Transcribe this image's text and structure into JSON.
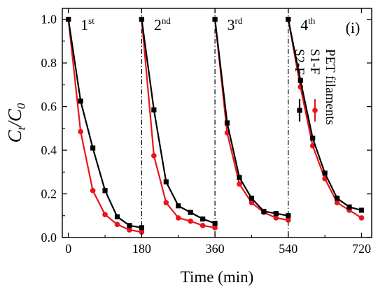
{
  "chart_data": {
    "type": "line",
    "xlabel": "Time (min)",
    "ylabel_main": "C",
    "ylabel_sub1": "t",
    "ylabel_mid": "/C",
    "ylabel_sub2": "0",
    "xlim": [
      -15,
      745
    ],
    "ylim": [
      0.0,
      1.05
    ],
    "xticks": [
      0,
      180,
      360,
      540,
      720
    ],
    "yticks": [
      0.0,
      0.2,
      0.4,
      0.6,
      0.8,
      1.0
    ],
    "ytick_labels": [
      "0.0",
      "0.2",
      "0.4",
      "0.6",
      "0.8",
      "1.0"
    ],
    "panel_label": "(i)",
    "cycles": [
      {
        "base": "1",
        "sup": "st",
        "x": 30
      },
      {
        "base": "2",
        "sup": "nd",
        "x": 210
      },
      {
        "base": "3",
        "sup": "rd",
        "x": 390
      },
      {
        "base": "4",
        "sup": "th",
        "x": 570
      }
    ],
    "dividers_x": [
      180,
      360,
      540
    ],
    "legend_title": "PET filaments",
    "legend_placement": "right, rotated vertical",
    "series": [
      {
        "name": "S1-F",
        "color": "#e8141b",
        "marker": "circle",
        "segments": [
          {
            "x": [
              0,
              30,
              60,
              90,
              120,
              150,
              180
            ],
            "y": [
              1.0,
              0.485,
              0.215,
              0.105,
              0.06,
              0.035,
              0.025
            ]
          },
          {
            "x": [
              180,
              210,
              240,
              270,
              300,
              330,
              360
            ],
            "y": [
              1.0,
              0.375,
              0.16,
              0.09,
              0.075,
              0.055,
              0.045
            ]
          },
          {
            "x": [
              360,
              390,
              420,
              450,
              480,
              510,
              540
            ],
            "y": [
              1.0,
              0.48,
              0.245,
              0.16,
              0.115,
              0.09,
              0.08
            ]
          },
          {
            "x": [
              540,
              570,
              600,
              630,
              660,
              690,
              720
            ],
            "y": [
              1.0,
              0.69,
              0.42,
              0.27,
              0.16,
              0.125,
              0.09
            ]
          }
        ]
      },
      {
        "name": "S2-F",
        "color": "#000000",
        "marker": "square",
        "segments": [
          {
            "x": [
              0,
              30,
              60,
              90,
              120,
              150,
              180
            ],
            "y": [
              1.0,
              0.625,
              0.41,
              0.215,
              0.095,
              0.055,
              0.045
            ]
          },
          {
            "x": [
              180,
              210,
              240,
              270,
              300,
              330,
              360
            ],
            "y": [
              1.0,
              0.585,
              0.255,
              0.145,
              0.115,
              0.085,
              0.065
            ]
          },
          {
            "x": [
              360,
              390,
              420,
              450,
              480,
              510,
              540
            ],
            "y": [
              1.0,
              0.525,
              0.275,
              0.18,
              0.12,
              0.11,
              0.1
            ]
          },
          {
            "x": [
              540,
              570,
              600,
              630,
              660,
              690,
              720
            ],
            "y": [
              1.0,
              0.72,
              0.455,
              0.295,
              0.18,
              0.14,
              0.125
            ]
          }
        ]
      }
    ]
  }
}
